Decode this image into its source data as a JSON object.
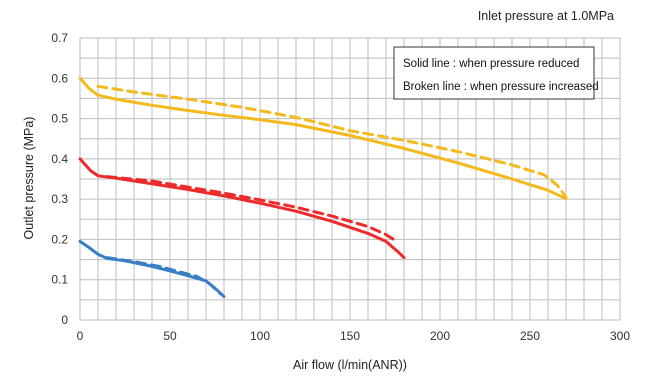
{
  "chart_data": {
    "type": "line",
    "subtitle": "Inlet pressure at 1.0MPa",
    "xlabel": "Air flow (l/min(ANR))",
    "ylabel": "Outlet pressure (MPa)",
    "xlim": [
      0,
      300
    ],
    "ylim": [
      0,
      0.7
    ],
    "x_ticks": [
      "0",
      "50",
      "100",
      "150",
      "200",
      "250",
      "300"
    ],
    "y_ticks": [
      "0",
      "0.1",
      "0.2",
      "0.3",
      "0.4",
      "0.5",
      "0.6",
      "0.7"
    ],
    "grid": true,
    "legend": {
      "placement": "top-right",
      "lines": [
        "Solid line : when pressure reduced",
        "Broken line : when pressure increased"
      ]
    },
    "series": [
      {
        "color": "#f5b91c",
        "style": "solid",
        "points": [
          [
            0,
            0.6
          ],
          [
            2,
            0.59
          ],
          [
            5,
            0.575
          ],
          [
            10,
            0.558
          ],
          [
            20,
            0.548
          ],
          [
            40,
            0.533
          ],
          [
            60,
            0.52
          ],
          [
            80,
            0.508
          ],
          [
            100,
            0.497
          ],
          [
            120,
            0.485
          ],
          [
            150,
            0.458
          ],
          [
            180,
            0.426
          ],
          [
            210,
            0.39
          ],
          [
            240,
            0.35
          ],
          [
            260,
            0.322
          ],
          [
            270,
            0.301
          ]
        ]
      },
      {
        "color": "#f5b91c",
        "style": "dashed",
        "points": [
          [
            10,
            0.58
          ],
          [
            30,
            0.566
          ],
          [
            60,
            0.548
          ],
          [
            90,
            0.528
          ],
          [
            120,
            0.503
          ],
          [
            150,
            0.47
          ],
          [
            180,
            0.446
          ],
          [
            210,
            0.418
          ],
          [
            240,
            0.385
          ],
          [
            258,
            0.36
          ],
          [
            265,
            0.335
          ],
          [
            270,
            0.305
          ]
        ]
      },
      {
        "color": "#ed2b2b",
        "style": "solid",
        "points": [
          [
            0,
            0.4
          ],
          [
            3,
            0.385
          ],
          [
            6,
            0.37
          ],
          [
            10,
            0.358
          ],
          [
            20,
            0.352
          ],
          [
            40,
            0.338
          ],
          [
            60,
            0.324
          ],
          [
            80,
            0.308
          ],
          [
            100,
            0.29
          ],
          [
            120,
            0.27
          ],
          [
            140,
            0.245
          ],
          [
            160,
            0.215
          ],
          [
            170,
            0.195
          ],
          [
            176,
            0.172
          ],
          [
            180,
            0.155
          ]
        ]
      },
      {
        "color": "#ed2b2b",
        "style": "dashed",
        "points": [
          [
            15,
            0.356
          ],
          [
            40,
            0.345
          ],
          [
            60,
            0.33
          ],
          [
            80,
            0.315
          ],
          [
            100,
            0.298
          ],
          [
            120,
            0.28
          ],
          [
            140,
            0.258
          ],
          [
            160,
            0.232
          ],
          [
            170,
            0.212
          ],
          [
            176,
            0.195
          ]
        ]
      },
      {
        "color": "#3a7fc3",
        "style": "solid",
        "points": [
          [
            0,
            0.195
          ],
          [
            5,
            0.18
          ],
          [
            10,
            0.163
          ],
          [
            15,
            0.153
          ],
          [
            25,
            0.147
          ],
          [
            40,
            0.133
          ],
          [
            50,
            0.122
          ],
          [
            60,
            0.11
          ],
          [
            70,
            0.097
          ],
          [
            76,
            0.075
          ],
          [
            80,
            0.058
          ]
        ]
      },
      {
        "color": "#3a7fc3",
        "style": "dashed",
        "points": [
          [
            15,
            0.155
          ],
          [
            30,
            0.145
          ],
          [
            45,
            0.132
          ],
          [
            55,
            0.12
          ],
          [
            65,
            0.108
          ],
          [
            72,
            0.09
          ],
          [
            78,
            0.065
          ]
        ]
      }
    ]
  }
}
